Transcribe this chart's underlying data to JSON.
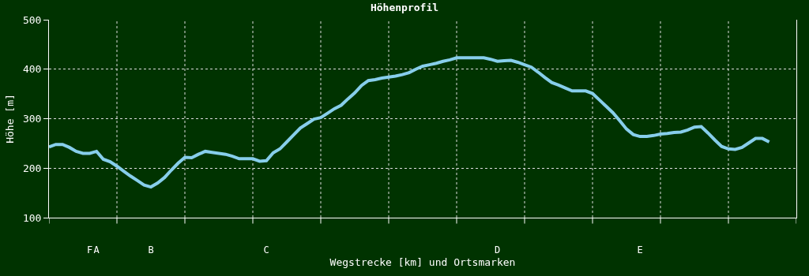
{
  "chart_data": {
    "type": "line",
    "title": "Höhenprofil",
    "xlabel": "Wegstrecke [km] und Ortsmarken",
    "ylabel": "Höhe [m]",
    "categories": [
      null,
      null,
      null,
      null,
      null,
      null,
      "F",
      "A",
      null,
      null,
      null,
      null,
      null,
      null,
      null,
      "B",
      null,
      null,
      null,
      null,
      null,
      null,
      null,
      null,
      null,
      null,
      null,
      null,
      null,
      null,
      null,
      null,
      "C",
      null,
      null,
      null,
      null,
      null,
      null,
      null,
      null,
      null,
      null,
      null,
      null,
      null,
      null,
      null,
      null,
      null,
      null,
      null,
      null,
      null,
      null,
      null,
      null,
      null,
      null,
      null,
      null,
      null,
      null,
      null,
      null,
      null,
      "D",
      null,
      null,
      null,
      null,
      null,
      null,
      null,
      null,
      null,
      null,
      null,
      null,
      null,
      null,
      null,
      null,
      null,
      null,
      null,
      null,
      "E",
      null,
      null,
      null,
      null,
      null,
      null,
      null,
      null,
      null,
      null,
      null,
      null,
      null,
      null,
      null,
      null,
      null,
      null,
      null,
      null,
      null,
      null,
      null
    ],
    "series": [
      {
        "color": "#87ceeb",
        "values": [
          243,
          248,
          248,
          242,
          234,
          230,
          230,
          234,
          218,
          213,
          204,
          194,
          184,
          175,
          166,
          162,
          170,
          181,
          196,
          210,
          222,
          221,
          228,
          234,
          232,
          230,
          228,
          224,
          219,
          219,
          219,
          214,
          215,
          231,
          239,
          253,
          267,
          281,
          290,
          299,
          302,
          311,
          320,
          327,
          340,
          352,
          367,
          377,
          379,
          382,
          384,
          386,
          389,
          393,
          400,
          406,
          409,
          412,
          416,
          419,
          423,
          423,
          423,
          423,
          423,
          420,
          416,
          417,
          418,
          414,
          409,
          404,
          394,
          383,
          373,
          368,
          362,
          356,
          356,
          356,
          351,
          338,
          325,
          312,
          296,
          279,
          268,
          264,
          264,
          266,
          269,
          270,
          272,
          273,
          277,
          283,
          284,
          271,
          257,
          244,
          239,
          238,
          242,
          251,
          260,
          260,
          253,
          null,
          null,
          null,
          null
        ]
      }
    ],
    "ylim": [
      100,
      500
    ],
    "yticks": [
      100,
      200,
      300,
      400,
      500
    ],
    "grid": true,
    "marker": "none",
    "line_style": "solid"
  }
}
